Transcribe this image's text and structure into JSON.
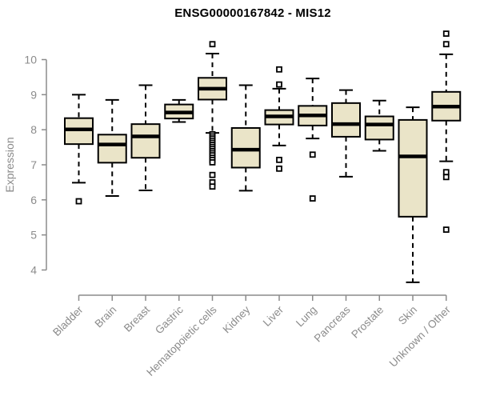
{
  "colors": {
    "background": "#FFFFFF",
    "box_fill": "#EAE4C8",
    "box_border": "#000000",
    "median": "#000000",
    "whisker": "#000000",
    "outlier": "#000000",
    "axis": "#8B8B8B",
    "label": "#8B8B8B",
    "title": "#000000"
  },
  "chart_data": {
    "type": "boxplot",
    "title": "ENSG00000167842 - MIS12",
    "xlabel": "",
    "ylabel": "Expression",
    "ylim": [
      4,
      10
    ],
    "y_ticks": [
      4,
      5,
      6,
      7,
      8,
      9,
      10
    ],
    "grid": false,
    "legend": false,
    "categories": [
      "Bladder",
      "Brain",
      "Breast",
      "Gastric",
      "Hematopoietic cells",
      "Kidney",
      "Liver",
      "Lung",
      "Pancreas",
      "Prostate",
      "Skin",
      "Unknown / Other"
    ],
    "series": [
      {
        "name": "Bladder",
        "whisker_low": 6.49,
        "q1": 7.59,
        "median": 8.01,
        "q3": 8.33,
        "whisker_high": 9.0,
        "outliers": [
          5.96
        ]
      },
      {
        "name": "Brain",
        "whisker_low": 6.11,
        "q1": 7.06,
        "median": 7.58,
        "q3": 7.86,
        "whisker_high": 8.85,
        "outliers": []
      },
      {
        "name": "Breast",
        "whisker_low": 6.27,
        "q1": 7.2,
        "median": 7.81,
        "q3": 8.16,
        "whisker_high": 9.27,
        "outliers": []
      },
      {
        "name": "Gastric",
        "whisker_low": 8.22,
        "q1": 8.32,
        "median": 8.49,
        "q3": 8.72,
        "whisker_high": 8.85,
        "outliers": []
      },
      {
        "name": "Hematopoietic cells",
        "whisker_low": 7.91,
        "q1": 8.86,
        "median": 9.17,
        "q3": 9.48,
        "whisker_high": 10.17,
        "outliers": [
          10.44,
          7.87,
          7.81,
          7.75,
          7.69,
          7.63,
          7.57,
          7.51,
          7.45,
          7.39,
          7.33,
          7.27,
          7.2,
          7.14,
          7.07,
          6.71,
          6.5,
          6.38
        ]
      },
      {
        "name": "Kidney",
        "whisker_low": 6.26,
        "q1": 6.92,
        "median": 7.43,
        "q3": 8.05,
        "whisker_high": 9.27,
        "outliers": []
      },
      {
        "name": "Liver",
        "whisker_low": 7.55,
        "q1": 8.15,
        "median": 8.38,
        "q3": 8.56,
        "whisker_high": 9.17,
        "outliers": [
          9.72,
          9.29,
          7.14,
          6.89
        ]
      },
      {
        "name": "Lung",
        "whisker_low": 7.75,
        "q1": 8.12,
        "median": 8.41,
        "q3": 8.68,
        "whisker_high": 9.46,
        "outliers": [
          7.29,
          6.04
        ]
      },
      {
        "name": "Pancreas",
        "whisker_low": 6.66,
        "q1": 7.8,
        "median": 8.16,
        "q3": 8.76,
        "whisker_high": 9.13,
        "outliers": []
      },
      {
        "name": "Prostate",
        "whisker_low": 7.4,
        "q1": 7.72,
        "median": 8.15,
        "q3": 8.38,
        "whisker_high": 8.83,
        "outliers": []
      },
      {
        "name": "Skin",
        "whisker_low": 3.65,
        "q1": 5.52,
        "median": 7.24,
        "q3": 8.28,
        "whisker_high": 8.64,
        "outliers": []
      },
      {
        "name": "Unknown / Other",
        "whisker_low": 7.1,
        "q1": 8.26,
        "median": 8.66,
        "q3": 9.08,
        "whisker_high": 10.15,
        "outliers": [
          10.74,
          10.44,
          6.79,
          6.65,
          5.15
        ]
      }
    ]
  }
}
